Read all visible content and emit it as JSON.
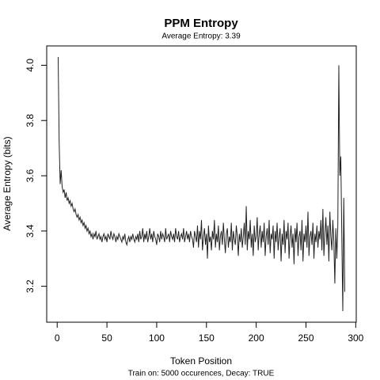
{
  "chart_data": {
    "type": "line",
    "title": "PPM Entropy",
    "subtitle": "Average Entropy: 3.39",
    "x_label": "Token Position",
    "y_label": "Average Entropy (bits)",
    "caption": "Train on: 5000 occurences, Decay: TRUE",
    "xlim": [
      -10.52,
      300.52
    ],
    "ylim": [
      3.07,
      4.07
    ],
    "xticks": [
      0,
      50,
      100,
      150,
      200,
      250,
      300
    ],
    "yticks": [
      3.2,
      3.4,
      3.6,
      3.8,
      {
        "value": 4,
        "label": "4.0"
      }
    ],
    "x": [
      1,
      2,
      3,
      4,
      5,
      6,
      7,
      8,
      9,
      10,
      11,
      12,
      13,
      14,
      15,
      16,
      17,
      18,
      19,
      20,
      21,
      22,
      23,
      24,
      25,
      26,
      27,
      28,
      29,
      30,
      31,
      32,
      33,
      34,
      35,
      36,
      37,
      38,
      39,
      40,
      41,
      42,
      43,
      44,
      45,
      46,
      47,
      48,
      49,
      50,
      51,
      52,
      53,
      54,
      55,
      56,
      57,
      58,
      59,
      60,
      61,
      62,
      63,
      64,
      65,
      66,
      67,
      68,
      69,
      70,
      71,
      72,
      73,
      74,
      75,
      76,
      77,
      78,
      79,
      80,
      81,
      82,
      83,
      84,
      85,
      86,
      87,
      88,
      89,
      90,
      91,
      92,
      93,
      94,
      95,
      96,
      97,
      98,
      99,
      100,
      101,
      102,
      103,
      104,
      105,
      106,
      107,
      108,
      109,
      110,
      111,
      112,
      113,
      114,
      115,
      116,
      117,
      118,
      119,
      120,
      121,
      122,
      123,
      124,
      125,
      126,
      127,
      128,
      129,
      130,
      131,
      132,
      133,
      134,
      135,
      136,
      137,
      138,
      139,
      140,
      141,
      142,
      143,
      144,
      145,
      146,
      147,
      148,
      149,
      150,
      151,
      152,
      153,
      154,
      155,
      156,
      157,
      158,
      159,
      160,
      161,
      162,
      163,
      164,
      165,
      166,
      167,
      168,
      169,
      170,
      171,
      172,
      173,
      174,
      175,
      176,
      177,
      178,
      179,
      180,
      181,
      182,
      183,
      184,
      185,
      186,
      187,
      188,
      189,
      190,
      191,
      192,
      193,
      194,
      195,
      196,
      197,
      198,
      199,
      200,
      201,
      202,
      203,
      204,
      205,
      206,
      207,
      208,
      209,
      210,
      211,
      212,
      213,
      214,
      215,
      216,
      217,
      218,
      219,
      220,
      221,
      222,
      223,
      224,
      225,
      226,
      227,
      228,
      229,
      230,
      231,
      232,
      233,
      234,
      235,
      236,
      237,
      238,
      239,
      240,
      241,
      242,
      243,
      244,
      245,
      246,
      247,
      248,
      249,
      250,
      251,
      252,
      253,
      254,
      255,
      256,
      257,
      258,
      259,
      260,
      261,
      262,
      263,
      264,
      265,
      266,
      267,
      268,
      269,
      270,
      271,
      272,
      273,
      274,
      275,
      276,
      277,
      278,
      279,
      280,
      281,
      282,
      283,
      284,
      285,
      286,
      287,
      288,
      289
    ],
    "series": [
      {
        "color": "#222222",
        "values": [
          4.03,
          3.72,
          3.57,
          3.62,
          3.56,
          3.54,
          3.55,
          3.52,
          3.54,
          3.51,
          3.52,
          3.5,
          3.51,
          3.49,
          3.5,
          3.48,
          3.47,
          3.48,
          3.46,
          3.45,
          3.46,
          3.44,
          3.45,
          3.43,
          3.44,
          3.42,
          3.43,
          3.41,
          3.42,
          3.4,
          3.41,
          3.39,
          3.4,
          3.38,
          3.39,
          3.37,
          3.39,
          3.38,
          3.4,
          3.37,
          3.38,
          3.39,
          3.37,
          3.38,
          3.36,
          3.38,
          3.39,
          3.37,
          3.38,
          3.36,
          3.39,
          3.38,
          3.37,
          3.4,
          3.38,
          3.37,
          3.39,
          3.38,
          3.36,
          3.38,
          3.37,
          3.39,
          3.38,
          3.37,
          3.36,
          3.38,
          3.37,
          3.39,
          3.36,
          3.35,
          3.37,
          3.38,
          3.36,
          3.38,
          3.37,
          3.39,
          3.37,
          3.36,
          3.38,
          3.37,
          3.39,
          3.36,
          3.4,
          3.37,
          3.38,
          3.41,
          3.36,
          3.39,
          3.37,
          3.4,
          3.36,
          3.38,
          3.41,
          3.37,
          3.39,
          3.36,
          3.4,
          3.38,
          3.37,
          3.35,
          3.39,
          3.38,
          3.36,
          3.4,
          3.37,
          3.39,
          3.38,
          3.36,
          3.41,
          3.37,
          3.38,
          3.39,
          3.36,
          3.4,
          3.38,
          3.37,
          3.39,
          3.36,
          3.41,
          3.38,
          3.37,
          3.4,
          3.36,
          3.38,
          3.39,
          3.37,
          3.41,
          3.36,
          3.38,
          3.4,
          3.37,
          3.39,
          3.36,
          3.4,
          3.38,
          3.37,
          3.34,
          3.4,
          3.38,
          3.36,
          3.42,
          3.34,
          3.4,
          3.37,
          3.44,
          3.33,
          3.38,
          3.41,
          3.35,
          3.39,
          3.3,
          3.42,
          3.36,
          3.38,
          3.33,
          3.4,
          3.37,
          3.44,
          3.34,
          3.39,
          3.36,
          3.42,
          3.33,
          3.38,
          3.4,
          3.35,
          3.43,
          3.37,
          3.32,
          3.39,
          3.41,
          3.34,
          3.38,
          3.36,
          3.43,
          3.33,
          3.4,
          3.37,
          3.35,
          3.42,
          3.38,
          3.31,
          3.39,
          3.36,
          3.41,
          3.34,
          3.38,
          3.43,
          3.35,
          3.49,
          3.33,
          3.4,
          3.37,
          3.44,
          3.34,
          3.39,
          3.31,
          3.42,
          3.36,
          3.38,
          3.45,
          3.33,
          3.39,
          3.42,
          3.34,
          3.4,
          3.36,
          3.43,
          3.31,
          3.38,
          3.41,
          3.35,
          3.44,
          3.32,
          3.39,
          3.37,
          3.42,
          3.3,
          3.4,
          3.36,
          3.43,
          3.33,
          3.38,
          3.41,
          3.29,
          3.39,
          3.35,
          3.44,
          3.32,
          3.4,
          3.37,
          3.43,
          3.3,
          3.38,
          3.42,
          3.34,
          3.39,
          3.28,
          3.41,
          3.36,
          3.43,
          3.31,
          3.38,
          3.4,
          3.33,
          3.44,
          3.29,
          3.39,
          3.36,
          3.42,
          3.34,
          3.47,
          3.31,
          3.38,
          3.4,
          3.35,
          3.43,
          3.3,
          3.39,
          3.36,
          3.42,
          3.34,
          3.4,
          3.37,
          3.44,
          3.33,
          3.48,
          3.31,
          3.39,
          3.45,
          3.35,
          3.42,
          3.29,
          3.47,
          3.38,
          3.33,
          3.44,
          3.36,
          3.21,
          3.41,
          3.3,
          3.42,
          4.0,
          3.6,
          3.67,
          3.38,
          3.11,
          3.52,
          3.18
        ]
      }
    ]
  }
}
